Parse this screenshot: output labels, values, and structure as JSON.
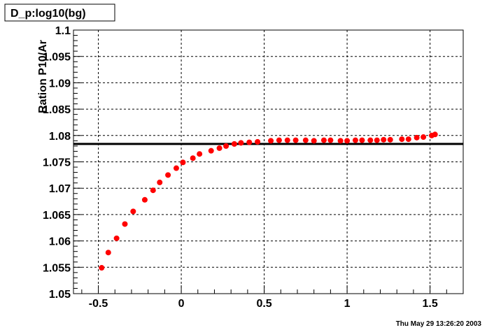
{
  "chart_data": {
    "type": "scatter",
    "title": "D_p:log10(bg)",
    "xlabel": "",
    "ylabel": "Ration P10/Ar",
    "xlim": [
      -0.65,
      1.7
    ],
    "ylim": [
      1.05,
      1.1
    ],
    "x_ticks": [
      -0.5,
      0,
      0.5,
      1,
      1.5
    ],
    "x_tick_labels": [
      "-0.5",
      "0",
      "0.5",
      "1",
      "1.5"
    ],
    "y_ticks": [
      1.05,
      1.055,
      1.06,
      1.065,
      1.07,
      1.075,
      1.08,
      1.085,
      1.09,
      1.095,
      1.1
    ],
    "y_tick_labels": [
      "1.05",
      "1.055",
      "1.06",
      "1.065",
      "1.07",
      "1.075",
      "1.08",
      "1.085",
      "1.09",
      "1.095",
      "1.1"
    ],
    "grid": true,
    "marker_color": "#ff0000",
    "fit_line": {
      "y": 1.0784,
      "color": "#000000"
    },
    "points": [
      {
        "x": -0.48,
        "y": 1.0549
      },
      {
        "x": -0.44,
        "y": 1.0578
      },
      {
        "x": -0.39,
        "y": 1.0605
      },
      {
        "x": -0.34,
        "y": 1.0632
      },
      {
        "x": -0.29,
        "y": 1.0656
      },
      {
        "x": -0.22,
        "y": 1.0678
      },
      {
        "x": -0.17,
        "y": 1.0696
      },
      {
        "x": -0.13,
        "y": 1.0711
      },
      {
        "x": -0.08,
        "y": 1.0725
      },
      {
        "x": -0.03,
        "y": 1.0738
      },
      {
        "x": 0.01,
        "y": 1.0749
      },
      {
        "x": 0.07,
        "y": 1.0757
      },
      {
        "x": 0.11,
        "y": 1.0765
      },
      {
        "x": 0.18,
        "y": 1.0771
      },
      {
        "x": 0.23,
        "y": 1.0776
      },
      {
        "x": 0.27,
        "y": 1.078
      },
      {
        "x": 0.32,
        "y": 1.0784
      },
      {
        "x": 0.36,
        "y": 1.0786
      },
      {
        "x": 0.41,
        "y": 1.0787
      },
      {
        "x": 0.46,
        "y": 1.0788
      },
      {
        "x": 0.54,
        "y": 1.079
      },
      {
        "x": 0.59,
        "y": 1.0791
      },
      {
        "x": 0.64,
        "y": 1.0791
      },
      {
        "x": 0.69,
        "y": 1.0791
      },
      {
        "x": 0.75,
        "y": 1.0791
      },
      {
        "x": 0.8,
        "y": 1.079
      },
      {
        "x": 0.86,
        "y": 1.0791
      },
      {
        "x": 0.9,
        "y": 1.0791
      },
      {
        "x": 0.96,
        "y": 1.079
      },
      {
        "x": 1.0,
        "y": 1.079
      },
      {
        "x": 1.05,
        "y": 1.0791
      },
      {
        "x": 1.09,
        "y": 1.0791
      },
      {
        "x": 1.14,
        "y": 1.0791
      },
      {
        "x": 1.18,
        "y": 1.0791
      },
      {
        "x": 1.22,
        "y": 1.0792
      },
      {
        "x": 1.26,
        "y": 1.0792
      },
      {
        "x": 1.33,
        "y": 1.0793
      },
      {
        "x": 1.37,
        "y": 1.0793
      },
      {
        "x": 1.42,
        "y": 1.0796
      },
      {
        "x": 1.46,
        "y": 1.0797
      },
      {
        "x": 1.51,
        "y": 1.08
      },
      {
        "x": 1.53,
        "y": 1.0802
      }
    ]
  },
  "timestamp": "Thu May 29 13:26:20 2003"
}
